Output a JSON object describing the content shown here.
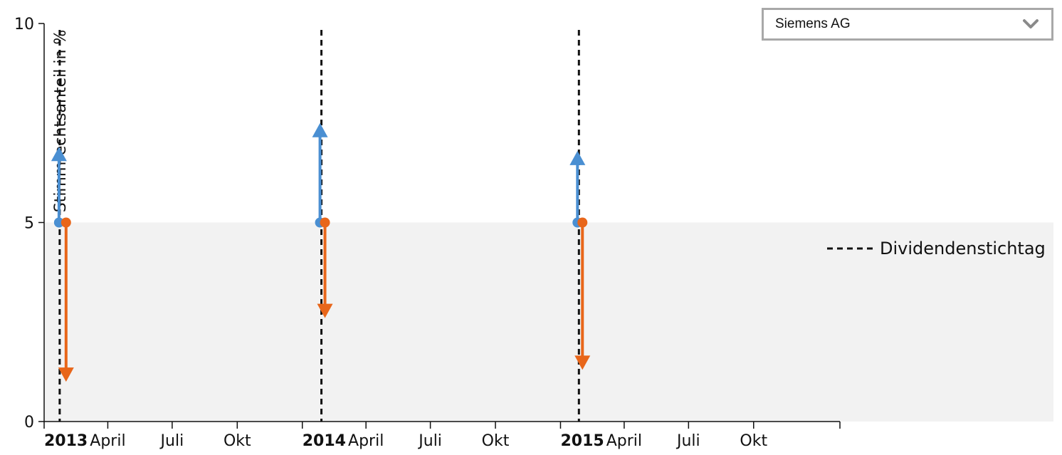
{
  "company_select": {
    "selected": "Siemens AG",
    "icon": "chevron-down-icon"
  },
  "chart_data": {
    "type": "scatter",
    "title": "",
    "xlabel": "",
    "ylabel": "Stimmrechtsanteil in %",
    "ylim": [
      0,
      10
    ],
    "y_ticks": [
      0,
      5,
      10
    ],
    "x_range": [
      "2013-01-01",
      "2016-01-31"
    ],
    "x_ticks": [
      {
        "date": "2013-01-01",
        "label": "2013",
        "bold": true
      },
      {
        "date": "2013-04-01",
        "label": "April",
        "bold": false
      },
      {
        "date": "2013-07-01",
        "label": "Juli",
        "bold": false
      },
      {
        "date": "2013-10-01",
        "label": "Okt",
        "bold": false
      },
      {
        "date": "2014-01-01",
        "label": "2014",
        "bold": true
      },
      {
        "date": "2014-04-01",
        "label": "April",
        "bold": false
      },
      {
        "date": "2014-07-01",
        "label": "Juli",
        "bold": false
      },
      {
        "date": "2014-10-01",
        "label": "Okt",
        "bold": false
      },
      {
        "date": "2015-01-01",
        "label": "2015",
        "bold": true
      },
      {
        "date": "2015-04-01",
        "label": "April",
        "bold": false
      },
      {
        "date": "2015-07-01",
        "label": "Juli",
        "bold": false
      },
      {
        "date": "2015-10-01",
        "label": "Okt",
        "bold": false
      }
    ],
    "threshold_band": {
      "from": 0,
      "to": 5
    },
    "dividend_dates": [
      "2013-01-23",
      "2014-01-28",
      "2015-01-27"
    ],
    "legend": {
      "label": "Dividendenstichtag",
      "position": "right"
    },
    "series": [
      {
        "color": "#4a8fd2",
        "direction": "up",
        "events": [
          {
            "date": "2013-01-22",
            "from": 5,
            "to": 6.9
          },
          {
            "date": "2014-01-26",
            "from": 5,
            "to": 7.5
          },
          {
            "date": "2015-01-25",
            "from": 5,
            "to": 6.8
          }
        ]
      },
      {
        "color": "#e8661a",
        "direction": "down",
        "events": [
          {
            "date": "2013-02-01",
            "from": 5,
            "to": 1.0
          },
          {
            "date": "2014-02-02",
            "from": 5,
            "to": 2.6
          },
          {
            "date": "2015-02-01",
            "from": 5,
            "to": 1.3
          }
        ]
      }
    ]
  }
}
